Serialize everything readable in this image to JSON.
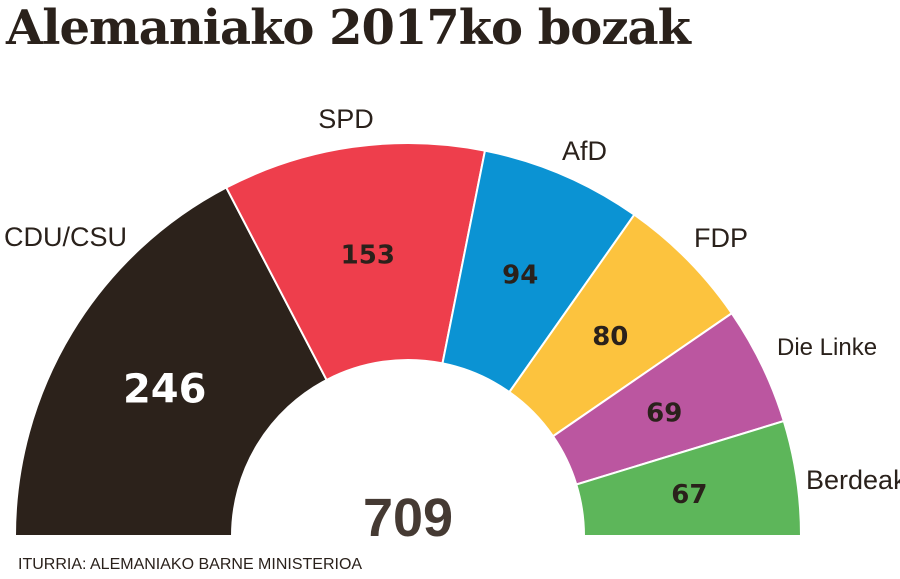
{
  "chart_data": {
    "type": "pie",
    "title": "Alemaniako 2017ko bozak",
    "total": "709",
    "source": "ITURRIA: ALEMANIAKO BARNE MINISTERIOA",
    "categories": [
      "CDU/CSU",
      "SPD",
      "AfD",
      "FDP",
      "Die Linke",
      "Berdeak"
    ],
    "values": [
      246,
      153,
      94,
      80,
      69,
      67
    ],
    "colors": [
      "#2c221b",
      "#ee3e4c",
      "#0b93d3",
      "#fcc33e",
      "#bb56a0",
      "#5db65a"
    ],
    "label_colors": [
      "#ffffff",
      "#2a211b",
      "#2a211b",
      "#2a211b",
      "#2a211b",
      "#2a211b"
    ],
    "style": "semicircle-donut"
  }
}
